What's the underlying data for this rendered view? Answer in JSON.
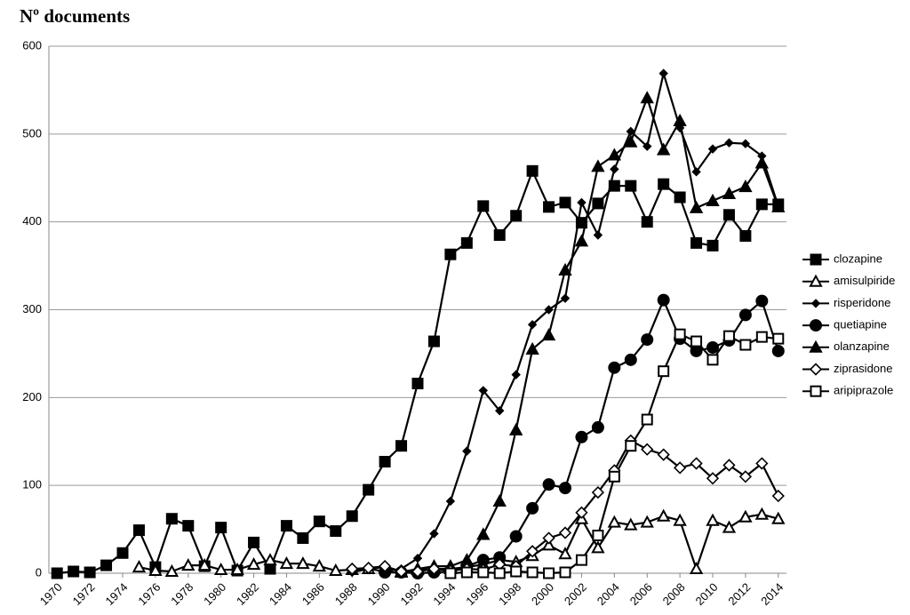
{
  "chart_data": {
    "type": "line",
    "y_label": "Nº documents",
    "x": [
      1970,
      1971,
      1972,
      1973,
      1974,
      1975,
      1976,
      1977,
      1978,
      1979,
      1980,
      1981,
      1982,
      1983,
      1984,
      1985,
      1986,
      1987,
      1988,
      1989,
      1990,
      1991,
      1992,
      1993,
      1994,
      1995,
      1996,
      1997,
      1998,
      1999,
      2000,
      2001,
      2002,
      2003,
      2004,
      2005,
      2006,
      2007,
      2008,
      2009,
      2010,
      2011,
      2012,
      2013,
      2014
    ],
    "xlim": [
      1969.5,
      2014.5
    ],
    "xticks": [
      1970,
      1972,
      1974,
      1976,
      1978,
      1980,
      1982,
      1984,
      1986,
      1988,
      1990,
      1992,
      1994,
      1996,
      1998,
      2000,
      2002,
      2004,
      2006,
      2008,
      2010,
      2012,
      2014
    ],
    "ylim": [
      0,
      600
    ],
    "yticks": [
      0,
      100,
      200,
      300,
      400,
      500,
      600
    ],
    "grid": true,
    "legend": "right",
    "series": [
      {
        "name": "clozapine",
        "color": "#000000",
        "marker": "square",
        "filled": true,
        "values": [
          0,
          2,
          1,
          9,
          23,
          49,
          7,
          62,
          54,
          8,
          52,
          3,
          35,
          5,
          54,
          40,
          59,
          48,
          65,
          95,
          127,
          145,
          216,
          264,
          363,
          376,
          418,
          385,
          407,
          458,
          417,
          422,
          399,
          421,
          441,
          441,
          400,
          443,
          428,
          376,
          373,
          408,
          384,
          420,
          420
        ]
      },
      {
        "name": "amisulpiride",
        "color": "#000000",
        "marker": "triangle",
        "filled": false,
        "values": [
          null,
          null,
          null,
          null,
          null,
          7,
          3,
          2,
          9,
          9,
          4,
          4,
          10,
          15,
          11,
          11,
          8,
          3,
          4,
          5,
          7,
          2,
          4,
          5,
          5,
          7,
          10,
          15,
          13,
          20,
          32,
          22,
          62,
          29,
          58,
          55,
          58,
          65,
          60,
          5,
          60,
          52,
          64,
          67,
          62
        ]
      },
      {
        "name": "risperidone",
        "color": "#000000",
        "marker": "diamond",
        "filled": true,
        "values": [
          null,
          null,
          null,
          null,
          null,
          null,
          null,
          null,
          null,
          null,
          null,
          null,
          null,
          null,
          null,
          null,
          null,
          null,
          1,
          5,
          2,
          5,
          17,
          45,
          82,
          139,
          208,
          185,
          226,
          283,
          300,
          313,
          422,
          385,
          460,
          503,
          486,
          569,
          507,
          457,
          483,
          490,
          489,
          475,
          418
        ]
      },
      {
        "name": "quetiapine",
        "color": "#000000",
        "marker": "circle",
        "filled": true,
        "values": [
          null,
          null,
          null,
          null,
          null,
          null,
          null,
          null,
          null,
          null,
          null,
          null,
          null,
          null,
          null,
          null,
          null,
          null,
          null,
          null,
          1,
          1,
          0,
          1,
          2,
          8,
          15,
          18,
          42,
          74,
          101,
          97,
          155,
          166,
          234,
          243,
          266,
          311,
          267,
          253,
          257,
          265,
          294,
          310,
          253
        ]
      },
      {
        "name": "olanzapine",
        "color": "#000000",
        "marker": "triangle",
        "filled": true,
        "values": [
          null,
          null,
          null,
          null,
          null,
          null,
          null,
          null,
          null,
          null,
          null,
          null,
          null,
          null,
          null,
          null,
          null,
          null,
          null,
          null,
          null,
          1,
          5,
          8,
          8,
          15,
          44,
          82,
          163,
          255,
          271,
          345,
          378,
          463,
          476,
          491,
          541,
          482,
          515,
          416,
          424,
          432,
          440,
          467,
          417
        ]
      },
      {
        "name": "ziprasidone",
        "color": "#000000",
        "marker": "diamond",
        "filled": false,
        "values": [
          null,
          null,
          null,
          null,
          null,
          null,
          null,
          null,
          null,
          null,
          null,
          null,
          null,
          null,
          null,
          null,
          null,
          null,
          5,
          6,
          8,
          2,
          2,
          5,
          3,
          5,
          4,
          10,
          8,
          25,
          40,
          46,
          69,
          92,
          117,
          151,
          141,
          135,
          120,
          125,
          108,
          123,
          110,
          125,
          88
        ]
      },
      {
        "name": "aripiprazole",
        "color": "#000000",
        "marker": "square",
        "filled": false,
        "values": [
          null,
          null,
          null,
          null,
          null,
          null,
          null,
          null,
          null,
          null,
          null,
          null,
          null,
          null,
          null,
          null,
          null,
          null,
          null,
          null,
          null,
          null,
          null,
          null,
          0,
          1,
          1,
          0,
          2,
          1,
          0,
          1,
          15,
          43,
          110,
          145,
          175,
          230,
          272,
          264,
          243,
          270,
          260,
          269,
          267
        ]
      }
    ]
  }
}
